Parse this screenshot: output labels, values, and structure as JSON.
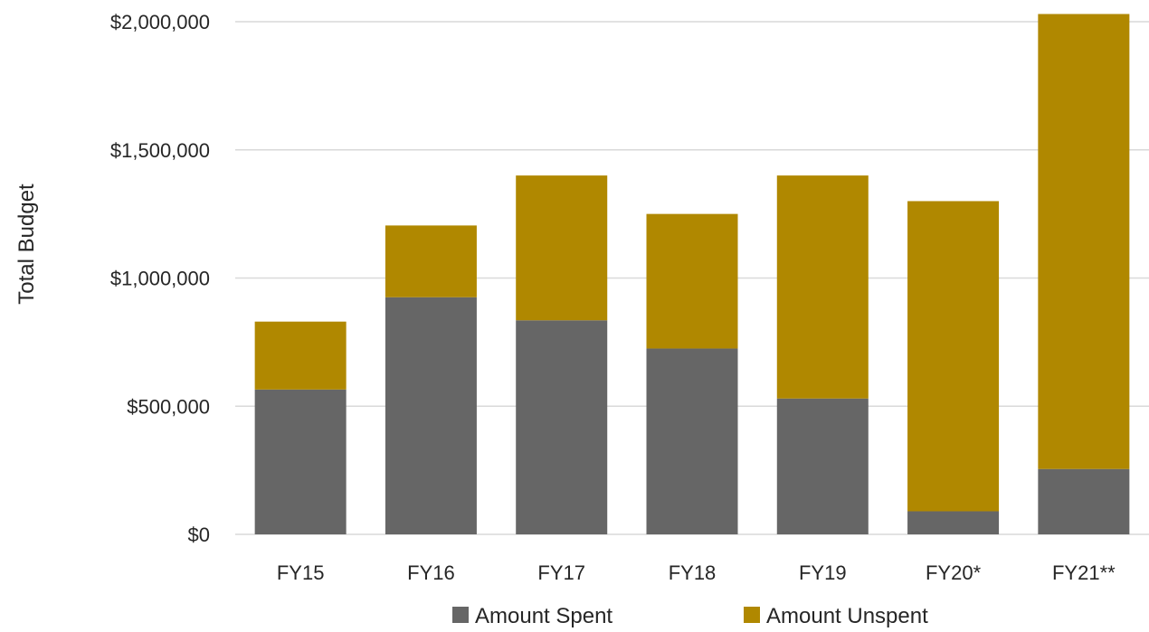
{
  "chart_data": {
    "type": "bar",
    "stacked": true,
    "title": "",
    "xlabel": "",
    "ylabel": "Total Budget",
    "ylim": [
      0,
      2000000
    ],
    "yticks": [
      0,
      500000,
      1000000,
      1500000,
      2000000
    ],
    "ytick_labels": [
      "$0",
      "$500,000",
      "$1,000,000",
      "$1,500,000",
      "$2,000,000"
    ],
    "categories": [
      "FY15",
      "FY16",
      "FY17",
      "FY18",
      "FY19",
      "FY20*",
      "FY21**"
    ],
    "series": [
      {
        "name": "Amount Spent",
        "color": "#666666",
        "values": [
          565000,
          925000,
          835000,
          725000,
          530000,
          90000,
          255000
        ]
      },
      {
        "name": "Amount Unspent",
        "color": "#b08800",
        "values": [
          265000,
          280000,
          565000,
          525000,
          870000,
          1210000,
          1775000
        ]
      }
    ],
    "grid": true,
    "legend_position": "bottom"
  }
}
